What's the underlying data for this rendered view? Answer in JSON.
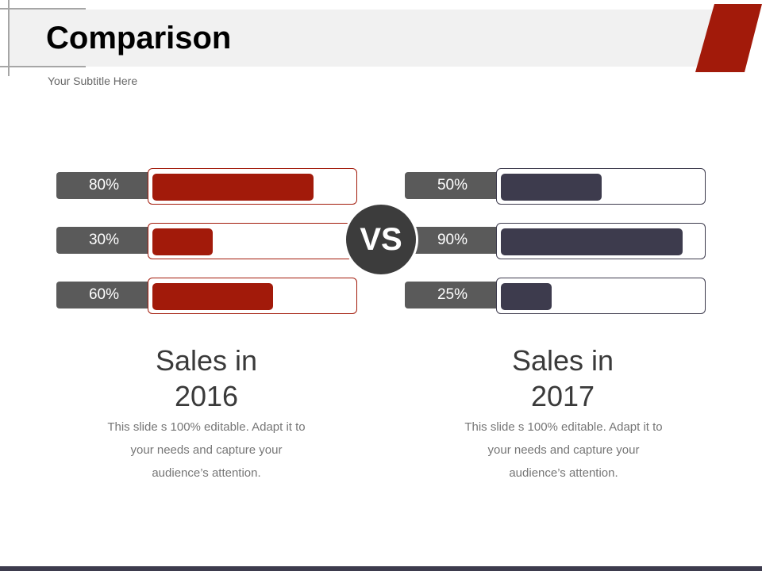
{
  "slide": {
    "title": "Comparison",
    "subtitle": "Your Subtitle Here",
    "vs_label": "VS"
  },
  "colors": {
    "accent_red": "#a21a0a",
    "dark_navy": "#3d3b4d",
    "label_gray": "#5a5a5a",
    "circle_gray": "#3c3c3c"
  },
  "chart_data": [
    {
      "type": "bar",
      "values": [
        80,
        30,
        60
      ],
      "labels": [
        "80%",
        "30%",
        "60%"
      ],
      "xlim": [
        0,
        100
      ]
    },
    {
      "type": "bar",
      "values": [
        50,
        90,
        25
      ],
      "labels": [
        "50%",
        "90%",
        "25%"
      ],
      "xlim": [
        0,
        100
      ]
    }
  ],
  "panels": [
    {
      "heading_line1": "Sales in",
      "heading_line2": "2016",
      "text_lines": [
        "This slide s 100% editable. Adapt it to",
        "your needs and capture your",
        "audience’s attention."
      ]
    },
    {
      "heading_line1": "Sales in",
      "heading_line2": "2017",
      "text_lines": [
        "This slide s 100% editable. Adapt it to",
        "your needs and capture your",
        "audience’s attention."
      ]
    }
  ]
}
